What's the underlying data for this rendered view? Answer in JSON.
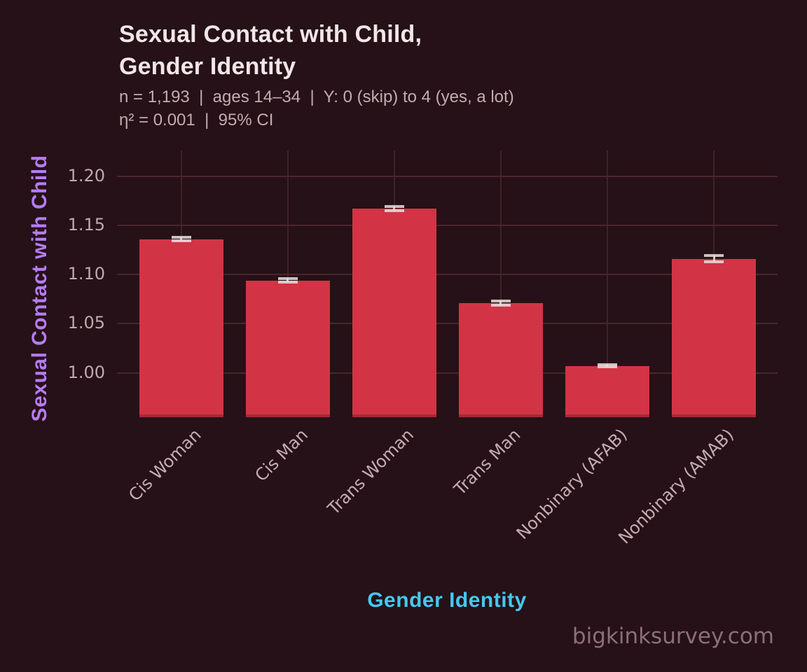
{
  "header": {
    "title_line1": "Sexual Contact with Child,",
    "title_line2": "Gender Identity",
    "subtitle_line1": "n = 1,193  |  ages 14–34  |  Y: 0 (skip) to 4 (yes, a lot)",
    "subtitle_line2": "η² = 0.001  |  95% CI"
  },
  "watermark": "bigkinksurvey.com",
  "chart_data": {
    "type": "bar",
    "title": "Sexual Contact with Child, Gender Identity",
    "subtitle": "n = 1,193 | ages 14–34 | Y: 0 (skip) to 4 (yes, a lot) | η² = 0.001 | 95% CI",
    "xlabel": "Gender Identity",
    "ylabel": "Sexual Contact with Child",
    "categories": [
      "Cis Woman",
      "Cis Man",
      "Trans Woman",
      "Trans Man",
      "Nonbinary (AFAB)",
      "Nonbinary (AMAB)"
    ],
    "values": [
      1.136,
      1.094,
      1.167,
      1.071,
      1.007,
      1.116
    ],
    "error_95ci_halfwidth": [
      0.002,
      0.002,
      0.002,
      0.002,
      0.001,
      0.003
    ],
    "yticks": [
      1.0,
      1.05,
      1.1,
      1.15,
      1.2
    ],
    "ylim": [
      0.955,
      1.226
    ],
    "grid": true,
    "legend_position": "none",
    "colors": {
      "background": "#251117",
      "bar": "#d23445",
      "grid": "#4a2530",
      "title_text": "#f2e6e8",
      "subtitle_text": "#c4abb1",
      "tick_text": "#c2a7ae",
      "ylabel_text": "#b67cf3",
      "xlabel_text": "#45c8ef",
      "watermark_text": "#8c6f78",
      "error_bar": "#e9dfe1"
    }
  }
}
